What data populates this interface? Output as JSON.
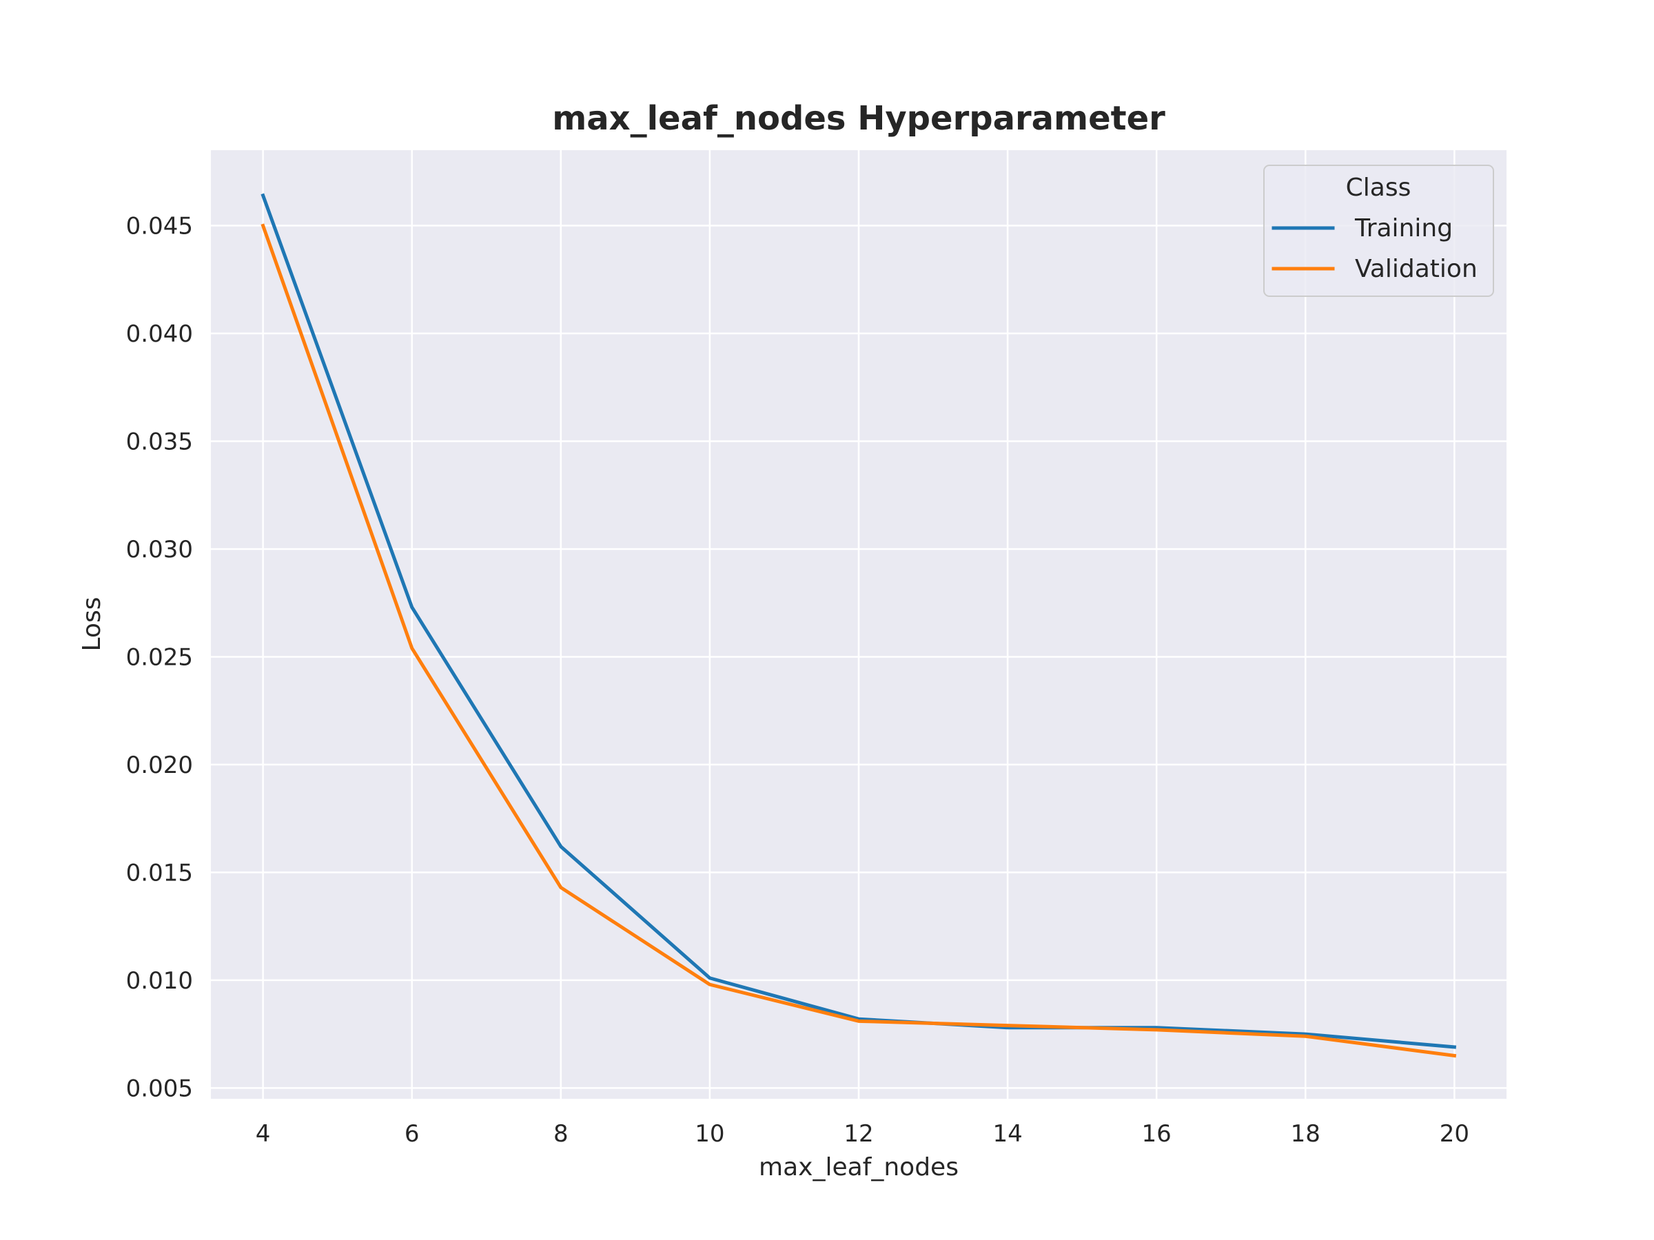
{
  "chart_data": {
    "type": "line",
    "title": "max_leaf_nodes Hyperparameter",
    "xlabel": "max_leaf_nodes",
    "ylabel": "Loss",
    "x": [
      4,
      6,
      8,
      10,
      12,
      14,
      16,
      18,
      20
    ],
    "xlim": [
      3.3,
      20.7
    ],
    "ylim": [
      0.0045,
      0.0485
    ],
    "xticks": [
      4,
      6,
      8,
      10,
      12,
      14,
      16,
      18,
      20
    ],
    "xtick_labels": [
      "4",
      "6",
      "8",
      "10",
      "12",
      "14",
      "16",
      "18",
      "20"
    ],
    "yticks": [
      0.005,
      0.01,
      0.015,
      0.02,
      0.025,
      0.03,
      0.035,
      0.04,
      0.045
    ],
    "ytick_labels": [
      "0.005",
      "0.010",
      "0.015",
      "0.020",
      "0.025",
      "0.030",
      "0.035",
      "0.040",
      "0.045"
    ],
    "grid": true,
    "legend": {
      "title": "Class",
      "position": "top-right"
    },
    "series": [
      {
        "name": "Training",
        "color": "#1f77b4",
        "values": [
          0.0464,
          0.0273,
          0.0162,
          0.0101,
          0.0082,
          0.0078,
          0.0078,
          0.0075,
          0.0069
        ]
      },
      {
        "name": "Validation",
        "color": "#ff7f0e",
        "values": [
          0.045,
          0.0254,
          0.0143,
          0.0098,
          0.0081,
          0.0079,
          0.0077,
          0.0074,
          0.0065
        ]
      }
    ],
    "background_color": "#eaeaf2",
    "grid_color": "#ffffff"
  }
}
